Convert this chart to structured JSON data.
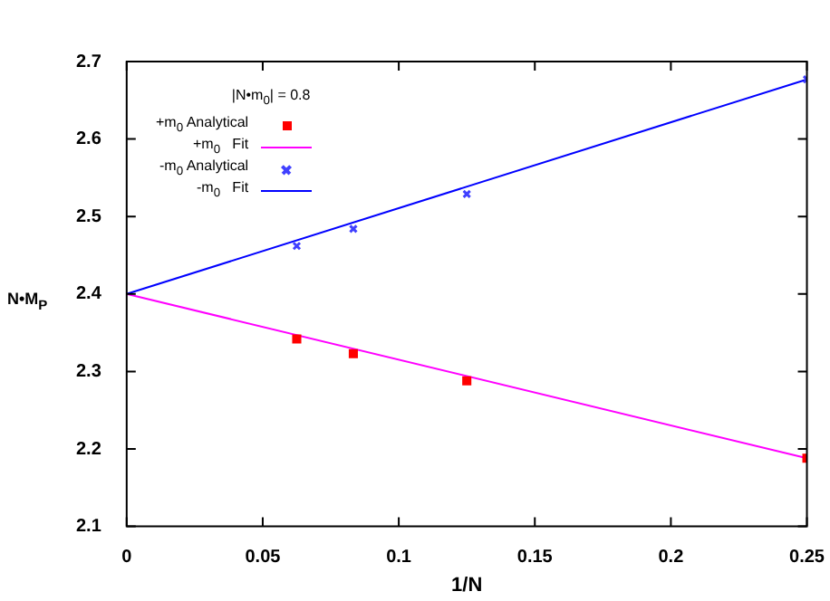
{
  "chart_data": {
    "type": "scatter",
    "xlabel": "1/N",
    "ylabel": "N•M$_{P}$",
    "legend_title": "|N•m$_{0}$| = 0.8",
    "legend": "top left",
    "grid": false,
    "xlim": [
      0,
      0.25
    ],
    "xticks": [
      0,
      0.05,
      0.1,
      0.15,
      0.2,
      0.25
    ],
    "ylim": [
      2.1,
      2.7
    ],
    "yticks": [
      2.1,
      2.2,
      2.3,
      2.4,
      2.5,
      2.6,
      2.7
    ],
    "series": [
      {
        "name": "+m$_{0}$ Analytical",
        "marker": "square",
        "color": "#ff0000",
        "x": [
          0.0625,
          0.0833,
          0.125,
          0.25
        ],
        "values": [
          2.342,
          2.323,
          2.288,
          2.188
        ]
      },
      {
        "name": "+m$_{0}$   Fit",
        "type": "line",
        "color": "#ff00ff",
        "x": [
          0,
          0.25
        ],
        "values": [
          2.4,
          2.188
        ]
      },
      {
        "name": "-m$_{0}$ Analytical",
        "marker": "cross",
        "color": "#4040ff",
        "x": [
          0.0625,
          0.0833,
          0.125,
          0.25
        ],
        "values": [
          2.462,
          2.484,
          2.529,
          2.677
        ]
      },
      {
        "name": "-m$_{0}$   Fit",
        "type": "line",
        "color": "#0000ff",
        "x": [
          0,
          0.25
        ],
        "values": [
          2.4,
          2.677
        ]
      }
    ]
  }
}
